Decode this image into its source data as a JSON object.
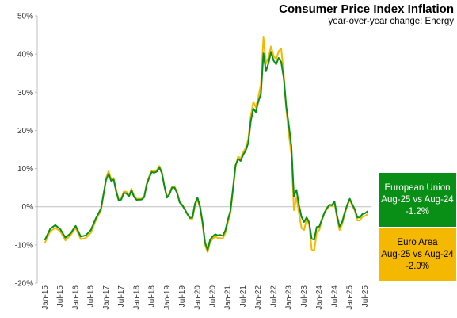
{
  "chart_data": {
    "type": "line",
    "title": "Consumer Price Index Inflation",
    "subtitle": "year-over-year  change: Energy",
    "xlabel": "",
    "ylabel": "",
    "ylim": [
      -20,
      50
    ],
    "y_ticks": [
      "50%",
      "40%",
      "30%",
      "20%",
      "10%",
      "0%",
      "-10%",
      "-20%"
    ],
    "y_tick_values": [
      50,
      40,
      30,
      20,
      10,
      0,
      -10,
      -20
    ],
    "x_range": [
      "Jan-15",
      "Aug-25"
    ],
    "x_tick_labels": [
      "Jan-15",
      "Jul-15",
      "Jan-16",
      "Jul-16",
      "Jan-17",
      "Jul-17",
      "Jan-18",
      "Jul-18",
      "Jan-19",
      "Jul-19",
      "Jan-20",
      "Jul-20",
      "Jan-21",
      "Jul-21",
      "Jan-22",
      "Jul-22",
      "Jan-23",
      "Jul-23",
      "Jan-24",
      "Jul-24",
      "Jan-25",
      "Jul-25"
    ],
    "grid": false,
    "legend": "none",
    "series": [
      {
        "name": "Euro Area",
        "color": "#f5b800",
        "points": [
          [
            "Jan-15",
            -9.3
          ],
          [
            "Mar-15",
            -6.5
          ],
          [
            "May-15",
            -5.5
          ],
          [
            "Jul-15",
            -6.5
          ],
          [
            "Sep-15",
            -8.8
          ],
          [
            "Nov-15",
            -7.5
          ],
          [
            "Jan-16",
            -5.5
          ],
          [
            "Mar-16",
            -8.5
          ],
          [
            "May-16",
            -8.2
          ],
          [
            "Jul-16",
            -6.8
          ],
          [
            "Sep-16",
            -3.5
          ],
          [
            "Nov-16",
            -1.0
          ],
          [
            "Jan-17",
            7.5
          ],
          [
            "Feb-17",
            9.3
          ],
          [
            "Mar-17",
            7.3
          ],
          [
            "Apr-17",
            7.5
          ],
          [
            "May-17",
            4.5
          ],
          [
            "Jun-17",
            1.9
          ],
          [
            "Jul-17",
            2.2
          ],
          [
            "Aug-17",
            4.0
          ],
          [
            "Sep-17",
            3.9
          ],
          [
            "Oct-17",
            3.0
          ],
          [
            "Nov-17",
            4.7
          ],
          [
            "Dec-17",
            2.9
          ],
          [
            "Jan-18",
            2.1
          ],
          [
            "Mar-18",
            2.1
          ],
          [
            "Apr-18",
            2.6
          ],
          [
            "May-18",
            6.1
          ],
          [
            "Jun-18",
            8.0
          ],
          [
            "Jul-18",
            9.5
          ],
          [
            "Aug-18",
            9.2
          ],
          [
            "Sep-18",
            9.6
          ],
          [
            "Oct-18",
            10.7
          ],
          [
            "Nov-18",
            9.1
          ],
          [
            "Dec-18",
            5.5
          ],
          [
            "Jan-19",
            2.6
          ],
          [
            "Feb-19",
            3.6
          ],
          [
            "Mar-19",
            5.3
          ],
          [
            "Apr-19",
            5.3
          ],
          [
            "May-19",
            3.8
          ],
          [
            "Jun-19",
            1.3
          ],
          [
            "Jul-19",
            0.5
          ],
          [
            "Aug-19",
            -0.6
          ],
          [
            "Sep-19",
            -1.8
          ],
          [
            "Oct-19",
            -3.1
          ],
          [
            "Nov-19",
            -3.2
          ],
          [
            "Dec-19",
            0.2
          ],
          [
            "Jan-20",
            1.9
          ],
          [
            "Feb-20",
            -0.3
          ],
          [
            "Mar-20",
            -4.5
          ],
          [
            "Apr-20",
            -10.0
          ],
          [
            "May-20",
            -11.9
          ],
          [
            "Jun-20",
            -9.3
          ],
          [
            "Jul-20",
            -8.4
          ],
          [
            "Aug-20",
            -7.8
          ],
          [
            "Sep-20",
            -8.2
          ],
          [
            "Oct-20",
            -8.2
          ],
          [
            "Nov-20",
            -8.3
          ],
          [
            "Dec-20",
            -6.9
          ],
          [
            "Jan-21",
            -4.2
          ],
          [
            "Feb-21",
            -1.7
          ],
          [
            "Mar-21",
            4.3
          ],
          [
            "Apr-21",
            10.4
          ],
          [
            "May-21",
            13.1
          ],
          [
            "Jun-21",
            12.6
          ],
          [
            "Jul-21",
            14.3
          ],
          [
            "Aug-21",
            15.4
          ],
          [
            "Sep-21",
            17.6
          ],
          [
            "Oct-21",
            23.7
          ],
          [
            "Nov-21",
            27.5
          ],
          [
            "Dec-21",
            26.0
          ],
          [
            "Jan-22",
            28.8
          ],
          [
            "Feb-22",
            32.0
          ],
          [
            "Mar-22",
            44.4
          ],
          [
            "Apr-22",
            37.5
          ],
          [
            "May-22",
            39.1
          ],
          [
            "Jun-22",
            42.0
          ],
          [
            "Jul-22",
            39.6
          ],
          [
            "Aug-22",
            38.6
          ],
          [
            "Sep-22",
            40.7
          ],
          [
            "Oct-22",
            41.5
          ],
          [
            "Nov-22",
            34.9
          ],
          [
            "Dec-22",
            25.5
          ],
          [
            "Jan-23",
            18.9
          ],
          [
            "Feb-23",
            13.7
          ],
          [
            "Mar-23",
            -0.9
          ],
          [
            "Apr-23",
            2.4
          ],
          [
            "May-23",
            -1.8
          ],
          [
            "Jun-23",
            -5.6
          ],
          [
            "Jul-23",
            -6.1
          ],
          [
            "Aug-23",
            -3.3
          ],
          [
            "Sep-23",
            -4.6
          ],
          [
            "Oct-23",
            -11.2
          ],
          [
            "Nov-23",
            -11.5
          ],
          [
            "Dec-23",
            -6.7
          ],
          [
            "Jan-24",
            -6.1
          ],
          [
            "Feb-24",
            -3.7
          ],
          [
            "Mar-24",
            -1.8
          ],
          [
            "Apr-24",
            -0.6
          ],
          [
            "May-24",
            0.3
          ],
          [
            "Jun-24",
            0.2
          ],
          [
            "Jul-24",
            1.2
          ],
          [
            "Aug-24",
            -3.0
          ],
          [
            "Sep-24",
            -6.1
          ],
          [
            "Oct-24",
            -4.6
          ],
          [
            "Nov-24",
            -2.0
          ],
          [
            "Dec-24",
            0.1
          ],
          [
            "Jan-25",
            1.9
          ],
          [
            "Feb-25",
            0.2
          ],
          [
            "Mar-25",
            -1.0
          ],
          [
            "Apr-25",
            -3.6
          ],
          [
            "May-25",
            -3.6
          ],
          [
            "Jun-25",
            -2.6
          ],
          [
            "Jul-25",
            -2.4
          ],
          [
            "Aug-25",
            -2.0
          ]
        ]
      },
      {
        "name": "European Union",
        "color": "#0a8f16",
        "points": [
          [
            "Jan-15",
            -8.6
          ],
          [
            "Mar-15",
            -5.8
          ],
          [
            "May-15",
            -4.8
          ],
          [
            "Jul-15",
            -5.9
          ],
          [
            "Sep-15",
            -8.1
          ],
          [
            "Nov-15",
            -7.0
          ],
          [
            "Jan-16",
            -5.0
          ],
          [
            "Mar-16",
            -7.8
          ],
          [
            "May-16",
            -7.5
          ],
          [
            "Jul-16",
            -6.1
          ],
          [
            "Sep-16",
            -3.0
          ],
          [
            "Nov-16",
            -0.5
          ],
          [
            "Jan-17",
            7.0
          ],
          [
            "Feb-17",
            8.6
          ],
          [
            "Mar-17",
            6.8
          ],
          [
            "Apr-17",
            7.1
          ],
          [
            "May-17",
            4.0
          ],
          [
            "Jun-17",
            1.6
          ],
          [
            "Jul-17",
            1.9
          ],
          [
            "Aug-17",
            3.6
          ],
          [
            "Sep-17",
            3.5
          ],
          [
            "Oct-17",
            2.7
          ],
          [
            "Nov-17",
            4.3
          ],
          [
            "Dec-17",
            2.6
          ],
          [
            "Jan-18",
            1.8
          ],
          [
            "Mar-18",
            1.9
          ],
          [
            "Apr-18",
            2.5
          ],
          [
            "May-18",
            5.8
          ],
          [
            "Jun-18",
            7.6
          ],
          [
            "Jul-18",
            9.1
          ],
          [
            "Aug-18",
            8.9
          ],
          [
            "Sep-18",
            9.2
          ],
          [
            "Oct-18",
            10.3
          ],
          [
            "Nov-18",
            8.8
          ],
          [
            "Dec-18",
            5.3
          ],
          [
            "Jan-19",
            2.4
          ],
          [
            "Feb-19",
            3.3
          ],
          [
            "Mar-19",
            5.0
          ],
          [
            "Apr-19",
            5.0
          ],
          [
            "May-19",
            3.6
          ],
          [
            "Jun-19",
            1.1
          ],
          [
            "Jul-19",
            0.4
          ],
          [
            "Aug-19",
            -0.7
          ],
          [
            "Sep-19",
            -1.9
          ],
          [
            "Oct-19",
            -2.9
          ],
          [
            "Nov-19",
            -2.8
          ],
          [
            "Dec-19",
            0.7
          ],
          [
            "Jan-20",
            2.4
          ],
          [
            "Feb-20",
            0.1
          ],
          [
            "Mar-20",
            -4.0
          ],
          [
            "Apr-20",
            -9.4
          ],
          [
            "May-20",
            -11.3
          ],
          [
            "Jun-20",
            -8.6
          ],
          [
            "Jul-20",
            -7.8
          ],
          [
            "Aug-20",
            -7.2
          ],
          [
            "Sep-20",
            -7.5
          ],
          [
            "Oct-20",
            -7.4
          ],
          [
            "Nov-20",
            -7.6
          ],
          [
            "Dec-20",
            -6.2
          ],
          [
            "Jan-21",
            -3.4
          ],
          [
            "Feb-21",
            -1.1
          ],
          [
            "Mar-21",
            4.7
          ],
          [
            "Apr-21",
            10.9
          ],
          [
            "May-21",
            12.5
          ],
          [
            "Jun-21",
            12.0
          ],
          [
            "Jul-21",
            13.6
          ],
          [
            "Aug-21",
            14.7
          ],
          [
            "Sep-21",
            16.7
          ],
          [
            "Oct-21",
            22.4
          ],
          [
            "Nov-21",
            25.7
          ],
          [
            "Dec-21",
            24.8
          ],
          [
            "Jan-22",
            27.6
          ],
          [
            "Feb-22",
            29.5
          ],
          [
            "Mar-22",
            40.2
          ],
          [
            "Apr-22",
            35.5
          ],
          [
            "May-22",
            37.6
          ],
          [
            "Jun-22",
            40.6
          ],
          [
            "Jul-22",
            38.3
          ],
          [
            "Aug-22",
            37.3
          ],
          [
            "Sep-22",
            39.0
          ],
          [
            "Oct-22",
            37.9
          ],
          [
            "Nov-22",
            33.8
          ],
          [
            "Dec-22",
            26.3
          ],
          [
            "Jan-23",
            21.3
          ],
          [
            "Feb-23",
            15.8
          ],
          [
            "Mar-23",
            2.7
          ],
          [
            "Apr-23",
            4.4
          ],
          [
            "May-23",
            0.4
          ],
          [
            "Jun-23",
            -2.7
          ],
          [
            "Jul-23",
            -4.0
          ],
          [
            "Aug-23",
            -2.8
          ],
          [
            "Sep-23",
            -4.1
          ],
          [
            "Oct-23",
            -8.4
          ],
          [
            "Nov-23",
            -8.6
          ],
          [
            "Dec-23",
            -5.3
          ],
          [
            "Jan-24",
            -5.2
          ],
          [
            "Feb-24",
            -3.4
          ],
          [
            "Mar-24",
            -1.6
          ],
          [
            "Apr-24",
            -0.4
          ],
          [
            "May-24",
            0.5
          ],
          [
            "Jun-24",
            0.4
          ],
          [
            "Jul-24",
            1.4
          ],
          [
            "Aug-24",
            -2.3
          ],
          [
            "Sep-24",
            -5.2
          ],
          [
            "Oct-24",
            -4.0
          ],
          [
            "Nov-24",
            -1.5
          ],
          [
            "Dec-24",
            0.5
          ],
          [
            "Jan-25",
            2.1
          ],
          [
            "Feb-25",
            0.6
          ],
          [
            "Mar-25",
            -0.7
          ],
          [
            "Apr-25",
            -2.8
          ],
          [
            "May-25",
            -2.8
          ],
          [
            "Jun-25",
            -1.9
          ],
          [
            "Jul-25",
            -1.7
          ],
          [
            "Aug-25",
            -1.2
          ]
        ]
      }
    ]
  },
  "annotations": {
    "eu": {
      "line1": "European Union",
      "line2": "Aug-25 vs Aug-24",
      "line3": "-1.2%",
      "color": "#0a8f16"
    },
    "ea": {
      "line1": "Euro Area",
      "line2": "Aug-25 vs Aug-24",
      "line3": "-2.0%",
      "color": "#f5b800"
    }
  }
}
